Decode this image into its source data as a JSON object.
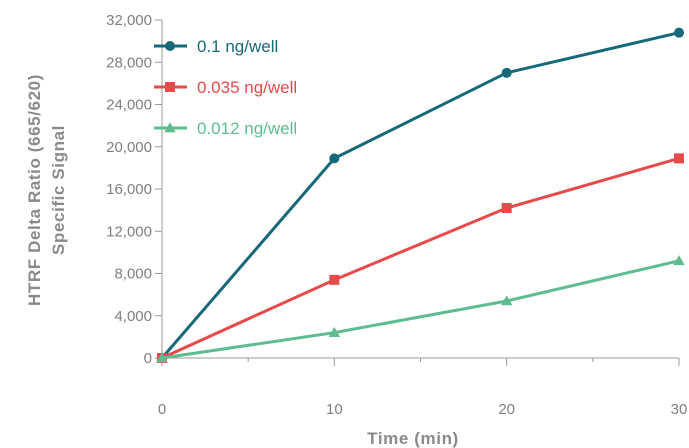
{
  "chart_data": {
    "type": "line",
    "title": "",
    "xlabel": "Time (min)",
    "ylabel_line1": "HTRF Delta Ratio (665/620)",
    "ylabel_line2": "Specific Signal",
    "x": [
      0,
      10,
      20,
      30
    ],
    "xlim": [
      0,
      30
    ],
    "xticks": [
      0,
      10,
      20,
      30
    ],
    "xtick_labels": [
      "0",
      "10",
      "20",
      "30"
    ],
    "ylim": [
      0,
      32000
    ],
    "yticks": [
      0,
      4000,
      8000,
      12000,
      16000,
      20000,
      24000,
      28000,
      32000
    ],
    "ytick_labels": [
      "0",
      "4,000",
      "8,000",
      "12,000",
      "16,000",
      "20,000",
      "24,000",
      "28,000",
      "32,000"
    ],
    "grid": false,
    "legend_position": "top-left",
    "series": [
      {
        "name": "0.1 ng/well",
        "values": [
          0,
          18900,
          27000,
          30800
        ],
        "color": "#17697a",
        "marker": "circle"
      },
      {
        "name": "0.035 ng/well",
        "values": [
          0,
          7400,
          14200,
          18900
        ],
        "color": "#e84a4a",
        "marker": "square"
      },
      {
        "name": "0.012 ng/well",
        "values": [
          0,
          2400,
          5400,
          9200
        ],
        "color": "#5ebd8f",
        "marker": "triangle"
      }
    ]
  }
}
